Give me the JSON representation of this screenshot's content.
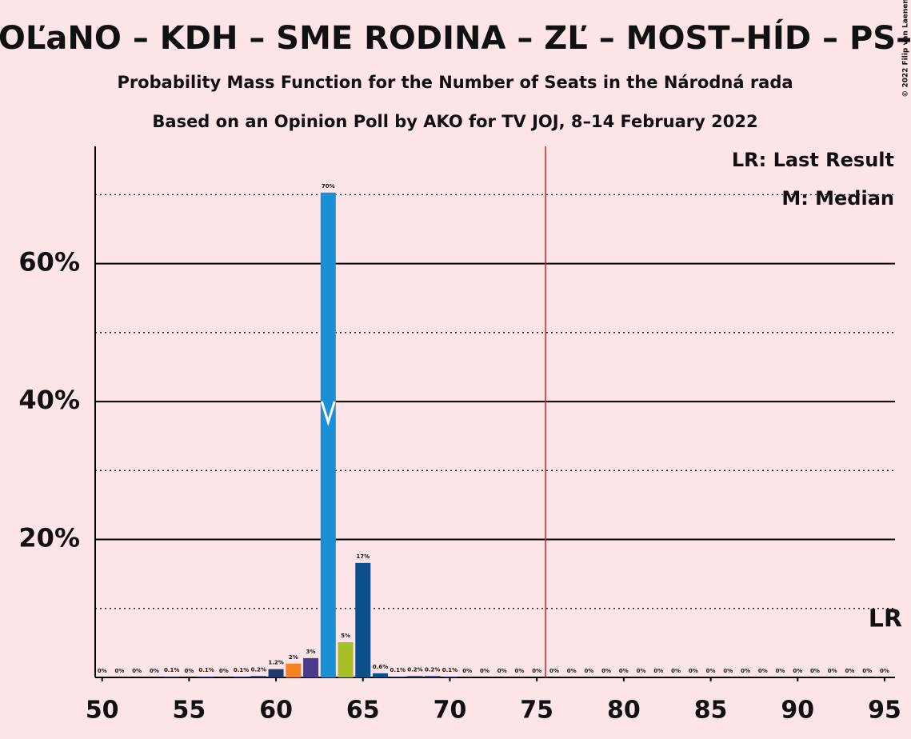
{
  "chart_data": {
    "type": "bar",
    "title": "OĽaNO – KDH – SME RODINA – ZĽ – MOST–HÍD – PS–",
    "subtitle": "Probability Mass Function for the Number of Seats in the Národná rada",
    "subtitle2": "Based on an Opinion Poll by AKO for TV JOJ, 8–14 February 2022",
    "copyright": "© 2022 Filip van Laenen",
    "legend": [
      "LR: Last Result",
      "M: Median"
    ],
    "x": [
      50,
      51,
      52,
      53,
      54,
      55,
      56,
      57,
      58,
      59,
      60,
      61,
      62,
      63,
      64,
      65,
      66,
      67,
      68,
      69,
      70,
      71,
      72,
      73,
      74,
      75,
      76,
      77,
      78,
      79,
      80,
      81,
      82,
      83,
      84,
      85,
      86,
      87,
      88,
      89,
      90,
      91,
      92,
      93,
      94,
      95
    ],
    "values": [
      0,
      0,
      0,
      0,
      0.1,
      0,
      0.1,
      0,
      0.1,
      0.2,
      1.2,
      2,
      2.8,
      70.3,
      5.1,
      16.6,
      0.6,
      0.1,
      0.2,
      0.2,
      0.1,
      0,
      0,
      0,
      0,
      0,
      0,
      0,
      0,
      0,
      0,
      0,
      0,
      0,
      0,
      0,
      0,
      0,
      0,
      0,
      0,
      0,
      0,
      0,
      0,
      0
    ],
    "value_labels": [
      "0%",
      "0%",
      "0%",
      "0%",
      "0.1%",
      "0%",
      "0.1%",
      "0%",
      "0.1%",
      "0.2%",
      "1.2%",
      "2%",
      "3%",
      "70%",
      "5%",
      "17%",
      "0.6%",
      "0.1%",
      "0.2%",
      "0.2%",
      "0.1%",
      "0%",
      "0%",
      "0%",
      "0%",
      "0%",
      "0%",
      "0%",
      "0%",
      "0%",
      "0%",
      "0%",
      "0%",
      "0%",
      "0%",
      "0%",
      "0%",
      "0%",
      "0%",
      "0%",
      "0%",
      "0%",
      "0%",
      "0%",
      "0%",
      "0%"
    ],
    "colors": [
      "#1f3a6e",
      "#1f3a6e",
      "#1f3a6e",
      "#1f3a6e",
      "#1f3a6e",
      "#1f3a6e",
      "#1f3a6e",
      "#1f3a6e",
      "#1f3a6e",
      "#1f3a6e",
      "#1f3a6e",
      "#f58220",
      "#4b3a8c",
      "#1a8fd6",
      "#a8c023",
      "#0b4f8a",
      "#0b4f8a",
      "#1f3a6e",
      "#1f3a6e",
      "#1f3a6e",
      "#1f3a6e",
      "#1f3a6e",
      "#1f3a6e",
      "#1f3a6e",
      "#1f3a6e",
      "#1f3a6e",
      "#1f3a6e",
      "#1f3a6e",
      "#1f3a6e",
      "#1f3a6e",
      "#1f3a6e",
      "#1f3a6e",
      "#1f3a6e",
      "#1f3a6e",
      "#1f3a6e",
      "#1f3a6e",
      "#1f3a6e",
      "#1f3a6e",
      "#1f3a6e",
      "#1f3a6e",
      "#1f3a6e",
      "#1f3a6e",
      "#1f3a6e",
      "#1f3a6e",
      "#1f3a6e",
      "#1f3a6e"
    ],
    "xlim": [
      49.6,
      95.6
    ],
    "xticks": [
      50,
      55,
      60,
      65,
      70,
      75,
      80,
      85,
      90,
      95
    ],
    "ylim": [
      0,
      77
    ],
    "yticks": [
      {
        "value": 20,
        "label": "20%"
      },
      {
        "value": 40,
        "label": "40%"
      },
      {
        "value": 60,
        "label": "60%"
      }
    ],
    "minor_yticks": [
      10,
      30,
      50,
      70
    ],
    "majority_line": 75.5,
    "median": 63,
    "last_result": {
      "seats": 95,
      "label": "LR"
    }
  }
}
